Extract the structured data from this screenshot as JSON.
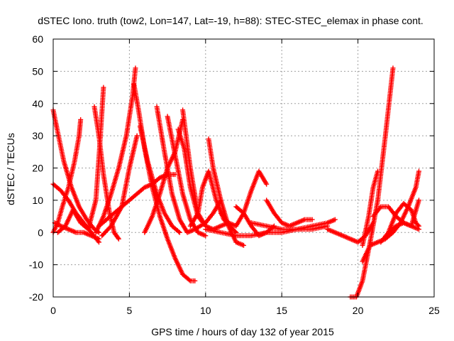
{
  "chart_data": {
    "type": "scatter",
    "title": "dSTEC Iono. truth (tow2, Lon=147, Lat=-19, h=88): STEC-STEC_elemax in phase cont.",
    "xlabel": "GPS time / hours of day 132 of year 2015",
    "ylabel": "dSTEC  / TECUs",
    "xlim": [
      0,
      25
    ],
    "ylim": [
      -20,
      60
    ],
    "xticks": [
      0,
      5,
      10,
      15,
      20,
      25
    ],
    "yticks": [
      -20,
      -10,
      0,
      10,
      20,
      30,
      40,
      50,
      60
    ],
    "grid": true,
    "legend": "none",
    "marker": "+",
    "color": "#ff0000",
    "series": [
      {
        "x": [
          0.0,
          0.3,
          0.7,
          1.2,
          1.7,
          2.2,
          2.7,
          3.0
        ],
        "y": [
          38,
          31,
          22,
          14,
          8,
          4,
          1,
          0
        ]
      },
      {
        "x": [
          0.0,
          0.5,
          1.0,
          1.5,
          2.0,
          2.5,
          3.0
        ],
        "y": [
          15,
          13,
          10,
          6,
          3,
          0,
          -3
        ]
      },
      {
        "x": [
          0.0,
          0.3,
          0.6,
          1.0,
          1.4,
          1.7,
          1.8
        ],
        "y": [
          0,
          3,
          8,
          14,
          22,
          30,
          35
        ]
      },
      {
        "x": [
          0.1,
          0.5,
          1.0,
          1.5,
          2.0,
          2.5,
          3.0
        ],
        "y": [
          3,
          2,
          1,
          0,
          0,
          -1,
          -2
        ]
      },
      {
        "x": [
          0.3,
          0.8,
          1.3,
          1.8,
          2.3,
          2.8,
          3.1,
          3.3
        ],
        "y": [
          0,
          2,
          7,
          3,
          1,
          10,
          30,
          45
        ]
      },
      {
        "x": [
          2.7,
          3.0,
          3.3,
          3.7,
          4.0,
          4.3
        ],
        "y": [
          39,
          30,
          18,
          6,
          0,
          -2
        ]
      },
      {
        "x": [
          2.8,
          3.3,
          3.8,
          4.3,
          4.8,
          5.2,
          5.4
        ],
        "y": [
          0,
          5,
          12,
          20,
          30,
          42,
          51
        ]
      },
      {
        "x": [
          3.2,
          3.8,
          4.5,
          5.0,
          5.5
        ],
        "y": [
          -1,
          2,
          8,
          20,
          30
        ]
      },
      {
        "x": [
          3.0,
          3.5,
          4.0,
          4.5,
          5.0,
          5.5,
          6.0,
          6.5,
          7.0,
          7.5,
          8.0
        ],
        "y": [
          2,
          4,
          6,
          8,
          10,
          12,
          14,
          15,
          17,
          18,
          18
        ]
      },
      {
        "x": [
          5.3,
          5.6,
          6.0,
          6.5,
          7.0,
          7.5,
          8.0,
          8.5,
          9.0,
          9.3
        ],
        "y": [
          46,
          38,
          26,
          14,
          5,
          -2,
          -8,
          -13,
          -15,
          -15
        ]
      },
      {
        "x": [
          5.7,
          6.2,
          6.8,
          7.3,
          7.8,
          8.3
        ],
        "y": [
          33,
          22,
          12,
          6,
          2,
          0
        ]
      },
      {
        "x": [
          6.0,
          6.5,
          7.0,
          7.5,
          8.0,
          8.5
        ],
        "y": [
          0,
          5,
          12,
          20,
          25,
          35
        ]
      },
      {
        "x": [
          6.8,
          7.3,
          7.8,
          8.3,
          8.8,
          9.3,
          10.0,
          10.5,
          11.0
        ],
        "y": [
          39,
          25,
          12,
          4,
          0,
          1,
          3,
          6,
          10
        ]
      },
      {
        "x": [
          7.5,
          8.0,
          8.5,
          9.0,
          9.5,
          10.0
        ],
        "y": [
          36,
          24,
          12,
          4,
          0,
          -1
        ]
      },
      {
        "x": [
          8.2,
          8.6,
          9.0,
          9.5,
          10.0
        ],
        "y": [
          32,
          26,
          14,
          5,
          2
        ]
      },
      {
        "x": [
          8.5,
          9.0,
          9.5,
          10.0,
          10.5,
          11.0,
          11.5
        ],
        "y": [
          38,
          20,
          6,
          2,
          1,
          2,
          3
        ]
      },
      {
        "x": [
          9.0,
          9.5,
          9.8,
          10.2,
          10.7,
          11.2,
          12.0
        ],
        "y": [
          2,
          6,
          14,
          19,
          10,
          4,
          0
        ]
      },
      {
        "x": [
          10.2,
          10.5,
          11.0,
          11.5,
          12.0,
          12.5
        ],
        "y": [
          29,
          20,
          10,
          2,
          -3,
          -4
        ]
      },
      {
        "x": [
          10.0,
          11.0,
          12.0,
          13.0,
          14.0,
          15.0,
          16.0,
          17.0,
          18.0
        ],
        "y": [
          1,
          0,
          -1,
          -1,
          0,
          0,
          1,
          1,
          2
        ]
      },
      {
        "x": [
          11.0,
          11.5,
          12.0,
          12.5,
          13.0,
          13.5,
          14.0
        ],
        "y": [
          6,
          3,
          2,
          6,
          13,
          19,
          15
        ]
      },
      {
        "x": [
          12.0,
          12.5,
          13.0,
          13.5,
          14.0,
          14.5
        ],
        "y": [
          8,
          6,
          2,
          -1,
          0,
          2
        ]
      },
      {
        "x": [
          14.0,
          14.5,
          15.0,
          15.5,
          16.0,
          16.5,
          17.0
        ],
        "y": [
          10,
          6,
          3,
          2,
          3,
          4,
          4
        ]
      },
      {
        "x": [
          13.0,
          14.0,
          15.0,
          16.0,
          17.0,
          18.0,
          18.5
        ],
        "y": [
          3,
          2,
          1,
          1,
          2,
          3,
          4
        ]
      },
      {
        "x": [
          18.0,
          18.5,
          19.0,
          19.5,
          20.0,
          20.5,
          21.0
        ],
        "y": [
          1,
          0,
          -1,
          -2,
          -3,
          -1,
          3
        ]
      },
      {
        "x": [
          19.5,
          19.9,
          20.3,
          20.8,
          21.3,
          21.8,
          22.3
        ],
        "y": [
          -20,
          -20,
          -15,
          -3,
          10,
          30,
          51
        ]
      },
      {
        "x": [
          20.3,
          20.8,
          21.3,
          21.8,
          22.3,
          22.8,
          23.3,
          23.8,
          24.0
        ],
        "y": [
          -9,
          -4,
          -3,
          -2,
          0,
          3,
          8,
          14,
          19
        ]
      },
      {
        "x": [
          20.3,
          20.7,
          21.0,
          21.3
        ],
        "y": [
          -4,
          5,
          14,
          19
        ]
      },
      {
        "x": [
          21.0,
          21.5,
          22.0,
          22.5,
          23.0,
          23.5,
          24.0
        ],
        "y": [
          5,
          8,
          8,
          5,
          3,
          2,
          1
        ]
      },
      {
        "x": [
          21.5,
          22.0,
          22.5,
          23.0,
          23.5,
          24.0
        ],
        "y": [
          -3,
          0,
          2,
          3,
          2,
          10
        ]
      },
      {
        "x": [
          22.0,
          22.5,
          23.0,
          23.5,
          23.8,
          24.0
        ],
        "y": [
          0,
          6,
          9,
          7,
          3,
          2
        ]
      }
    ]
  }
}
